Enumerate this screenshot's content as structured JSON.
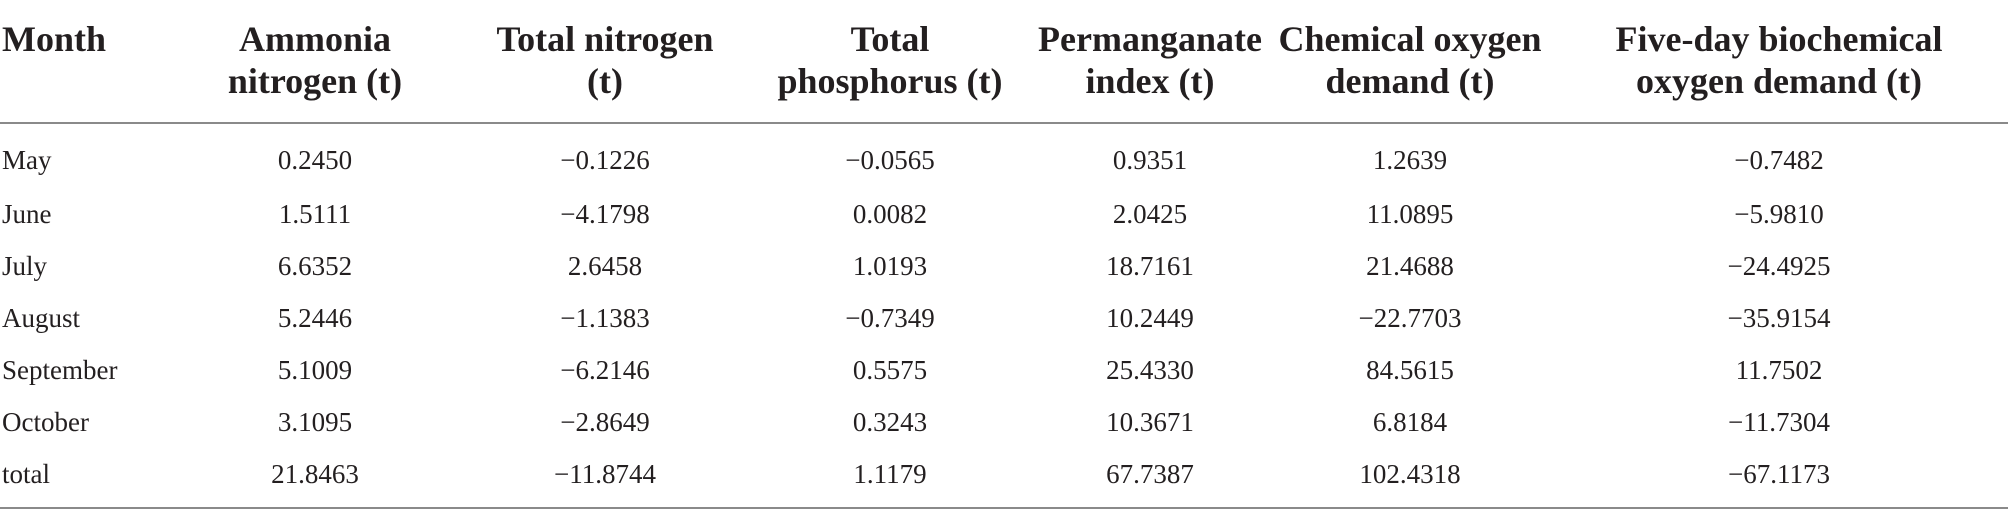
{
  "table": {
    "headers": [
      "Month",
      "Ammonia nitrogen (t)",
      "Total nitrogen (t)",
      "Total phosphorus (t)",
      "Permanganate index (t)",
      "Chemical oxygen demand (t)",
      "Five-day biochemical oxygen demand (t)"
    ],
    "rows": [
      [
        "May",
        "0.2450",
        "−0.1226",
        "−0.0565",
        "0.9351",
        "1.2639",
        "−0.7482"
      ],
      [
        "June",
        "1.5111",
        "−4.1798",
        "0.0082",
        "2.0425",
        "11.0895",
        "−5.9810"
      ],
      [
        "July",
        "6.6352",
        "2.6458",
        "1.0193",
        "18.7161",
        "21.4688",
        "−24.4925"
      ],
      [
        "August",
        "5.2446",
        "−1.1383",
        "−0.7349",
        "10.2449",
        "−22.7703",
        "−35.9154"
      ],
      [
        "September",
        "5.1009",
        "−6.2146",
        "0.5575",
        "25.4330",
        "84.5615",
        "11.7502"
      ],
      [
        "October",
        "3.1095",
        "−2.8649",
        "0.3243",
        "10.3671",
        "6.8184",
        "−11.7304"
      ],
      [
        "total",
        "21.8463",
        "−11.8744",
        "1.1179",
        "67.7387",
        "102.4318",
        "−67.1173"
      ]
    ]
  }
}
